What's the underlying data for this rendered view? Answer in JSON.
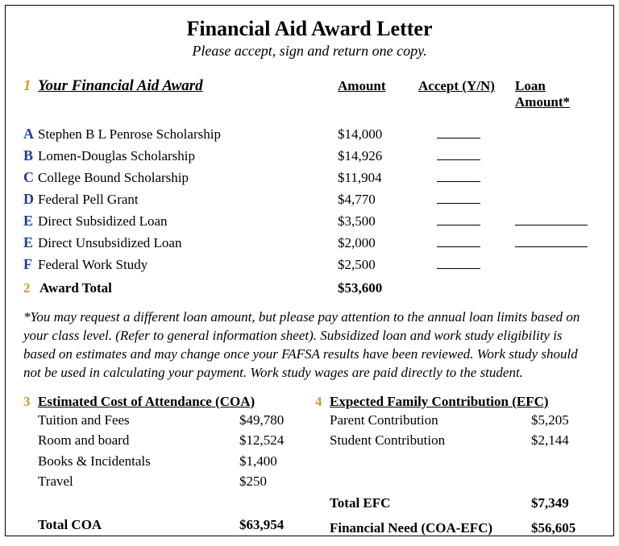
{
  "title": "Financial Aid Award Letter",
  "subtitle": "Please accept, sign and return one copy.",
  "columns": {
    "award": "Your Financial Aid Award",
    "amount": "Amount",
    "accept": "Accept (Y/N)",
    "loan": "Loan Amount*"
  },
  "markers": {
    "section1": "1",
    "section2": "2",
    "section3": "3",
    "section4": "4"
  },
  "awards": [
    {
      "marker": "A",
      "name": "Stephen B L Penrose Scholarship",
      "amount": "$14,000",
      "accept_blank": true,
      "loan_blank": false
    },
    {
      "marker": "B",
      "name": "Lomen-Douglas Scholarship",
      "amount": "$14,926",
      "accept_blank": true,
      "loan_blank": false
    },
    {
      "marker": "C",
      "name": "College Bound Scholarship",
      "amount": "$11,904",
      "accept_blank": true,
      "loan_blank": false
    },
    {
      "marker": "D",
      "name": "Federal Pell Grant",
      "amount": "$4,770",
      "accept_blank": true,
      "loan_blank": false
    },
    {
      "marker": "E",
      "name": "Direct Subsidized Loan",
      "amount": "$3,500",
      "accept_blank": true,
      "loan_blank": true
    },
    {
      "marker": "E",
      "name": "Direct Unsubsidized Loan",
      "amount": "$2,000",
      "accept_blank": true,
      "loan_blank": true
    },
    {
      "marker": "F",
      "name": "Federal Work Study",
      "amount": "$2,500",
      "accept_blank": true,
      "loan_blank": false
    }
  ],
  "award_total": {
    "label": "Award Total",
    "amount": "$53,600"
  },
  "note": "*You may request a different loan amount, but please pay attention to the annual loan limits based on your class level. (Refer to general information sheet).  Subsidized loan and work study eligibility is based on estimates and may change once your FAFSA results have been reviewed.  Work study should not be used in calculating your payment.  Work study wages are paid directly to the student.",
  "coa": {
    "title": "Estimated Cost of Attendance (COA)",
    "items": [
      {
        "label": "Tuition and Fees",
        "value": "$49,780"
      },
      {
        "label": "Room and board",
        "value": "$12,524"
      },
      {
        "label": "Books & Incidentals",
        "value": "$1,400"
      },
      {
        "label": "Travel",
        "value": "$250"
      }
    ],
    "total_label": "Total COA",
    "total_value": "$63,954"
  },
  "efc": {
    "title": "Expected Family Contribution (EFC)",
    "items": [
      {
        "label": "Parent Contribution",
        "value": "$5,205"
      },
      {
        "label": "Student Contribution",
        "value": "$2,144"
      }
    ],
    "total_label": "Total EFC",
    "total_value": "$7,349",
    "need_label": "Financial Need (COA-EFC)",
    "need_value": "$56,605"
  },
  "colors": {
    "marker_gold": "#d29a2b",
    "marker_blue": "#1d3e9c",
    "text": "#000000",
    "background": "#ffffff",
    "border": "#000000"
  },
  "typography": {
    "family": "Times New Roman, serif",
    "title_size_pt": 20,
    "body_size_pt": 13
  }
}
